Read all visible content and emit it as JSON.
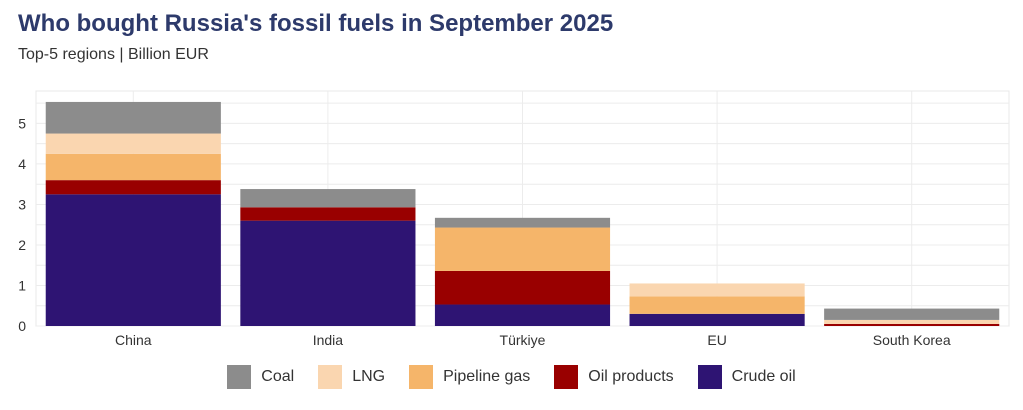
{
  "title": "Who bought Russia's fossil fuels in September 2025",
  "subtitle": "Top-5 regions | Billion EUR",
  "colors": {
    "Crude oil": "#2e1473",
    "Oil products": "#990000",
    "Pipeline gas": "#f5b56a",
    "LNG": "#fad6b0",
    "Coal": "#8c8c8c"
  },
  "chart_data": {
    "type": "bar",
    "stacked": true,
    "title": "Who bought Russia's fossil fuels in September 2025",
    "subtitle": "Top-5 regions | Billion EUR",
    "categories": [
      "China",
      "India",
      "Türkiye",
      "EU",
      "South Korea"
    ],
    "series": [
      {
        "name": "Crude oil",
        "values": [
          3.25,
          2.6,
          0.53,
          0.3,
          0.0
        ]
      },
      {
        "name": "Oil products",
        "values": [
          0.35,
          0.33,
          0.83,
          0.0,
          0.05
        ]
      },
      {
        "name": "Pipeline gas",
        "values": [
          0.65,
          0.0,
          1.07,
          0.43,
          0.0
        ]
      },
      {
        "name": "LNG",
        "values": [
          0.5,
          0.0,
          0.0,
          0.32,
          0.1
        ]
      },
      {
        "name": "Coal",
        "values": [
          0.78,
          0.45,
          0.24,
          0.0,
          0.28
        ]
      }
    ],
    "ylim": [
      0,
      5.8
    ],
    "yticks": [
      0,
      1,
      2,
      3,
      4,
      5
    ],
    "xlabel": "",
    "ylabel": "",
    "grid": true,
    "legend": [
      "Coal",
      "LNG",
      "Pipeline gas",
      "Oil products",
      "Crude oil"
    ],
    "legend_position": "bottom"
  }
}
